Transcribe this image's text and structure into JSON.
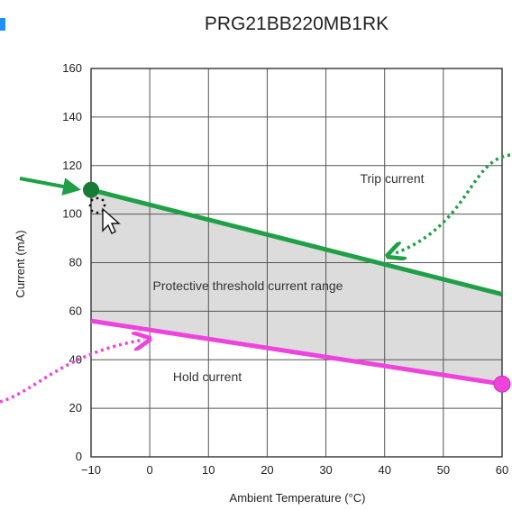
{
  "chart_data": {
    "type": "line",
    "title": "PRG21BB220MB1RK",
    "xlabel": "Ambient Temperature (°C)",
    "ylabel": "Current (mA)",
    "xlim": [
      -10,
      60
    ],
    "ylim": [
      0,
      160
    ],
    "xticks": [
      "−10",
      "0",
      "10",
      "20",
      "30",
      "40",
      "50",
      "60"
    ],
    "yticks": [
      "0",
      "20",
      "40",
      "60",
      "80",
      "100",
      "120",
      "140",
      "160"
    ],
    "grid": true,
    "series": [
      {
        "name": "Trip current",
        "color": "#1fa046",
        "x": [
          -10,
          60
        ],
        "y": [
          110,
          67
        ]
      },
      {
        "name": "Hold current",
        "color": "#ee44dd",
        "x": [
          -10,
          60
        ],
        "y": [
          56,
          30
        ]
      }
    ],
    "annotations": {
      "trip": "Trip current",
      "region": "Protective threshold current range",
      "hold": "Hold current"
    },
    "colors": {
      "region_fill": "#dcdcdc",
      "trip_arrow": "#1fa046",
      "hold_arrow": "#ee44dd",
      "grid": "#555555",
      "left_accent": "#1e90ff"
    },
    "icons": [
      "cursor-pointer-icon",
      "trip-arrow-icon",
      "hold-arrow-icon"
    ]
  }
}
